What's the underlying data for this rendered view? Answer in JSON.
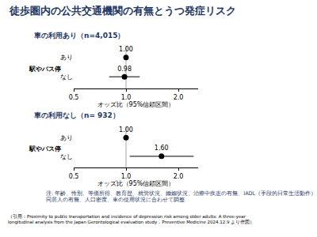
{
  "title": "徒歩圏内の公共交通機関の有無とうつ発症リスク",
  "notes": [
    "注: 年齢、性別、等価所得、教育歴、就労状況、婚姻状況、治療中疾患の有無、IADL（手段的日常生活動作）、",
    "同居人の有無、人口密度、車の使用状況に合わせて調整"
  ],
  "citation": [
    "（引用：Proximity to public transportation and incidence of depression risk among older adults: A three-year",
    "longitudinal analysis from the Japan Gerontological evaluation study．Preventive Medicine 2024.12.9 より作図）"
  ],
  "chart_data": [
    {
      "type": "scatter",
      "title": "車の利用あり（n=4,015）",
      "y_label": "駅やバス停",
      "x_label": "オッズ比（95%信頼区間）",
      "categories": [
        "あり",
        "なし"
      ],
      "values": [
        1.0,
        0.98
      ],
      "value_labels": [
        "1.00",
        "0.98"
      ],
      "lower": [
        null,
        0.8
      ],
      "upper": [
        null,
        1.2
      ],
      "xlim": [
        0.5,
        2.6
      ],
      "xticks": [
        0.5,
        {
          "value": 1,
          "label": "1.0"
        },
        {
          "value": 2,
          "label": "2.0"
        }
      ],
      "log": "x",
      "data_labels": true,
      "color": "#000000",
      "marker": "circle"
    },
    {
      "type": "scatter",
      "title": "車の利用なし（n= 932）",
      "y_label": "駅やバス停",
      "x_label": "オッズ比（95%信頼区間）",
      "categories": [
        "あり",
        "なし"
      ],
      "values": [
        1.0,
        1.6
      ],
      "value_labels": [
        "1.00",
        "1.60"
      ],
      "lower": [
        null,
        1.05
      ],
      "upper": [
        null,
        2.45
      ],
      "xlim": [
        0.5,
        2.6
      ],
      "xticks": [
        0.5,
        {
          "value": 1,
          "label": "1.0"
        },
        {
          "value": 2,
          "label": "2.0"
        }
      ],
      "log": "x",
      "data_labels": true,
      "color": "#000000",
      "marker": "circle"
    }
  ]
}
